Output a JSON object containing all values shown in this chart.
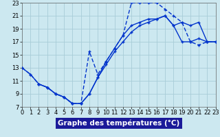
{
  "title": "Graphe des températures (°C)",
  "bg_color": "#cce8f0",
  "grid_color": "#a8ccd8",
  "line_color": "#0033cc",
  "xlabel_bg": "#1a1a99",
  "xlim": [
    0,
    23
  ],
  "ylim": [
    7,
    23
  ],
  "xticks": [
    0,
    1,
    2,
    3,
    4,
    5,
    6,
    7,
    8,
    9,
    10,
    11,
    12,
    13,
    14,
    15,
    16,
    17,
    18,
    19,
    20,
    21,
    22,
    23
  ],
  "yticks": [
    7,
    9,
    11,
    13,
    15,
    17,
    19,
    21,
    23
  ],
  "curve1_x": [
    0,
    1,
    2,
    3,
    4,
    5,
    6,
    7,
    8,
    9,
    10,
    11,
    12,
    13,
    14,
    15,
    16,
    17,
    18,
    19,
    20,
    21,
    22,
    23
  ],
  "curve1_y": [
    13,
    12,
    10.5,
    10,
    9,
    8.5,
    7.5,
    7.5,
    9,
    11.5,
    14,
    16,
    18,
    19.5,
    20,
    20.5,
    20.5,
    21,
    19.5,
    17,
    17,
    17.5,
    17,
    17
  ],
  "curve2_x": [
    0,
    1,
    2,
    3,
    4,
    5,
    6,
    7,
    8,
    9,
    10,
    11,
    12,
    13,
    14,
    15,
    16,
    17,
    18,
    19,
    20,
    21,
    22,
    23
  ],
  "curve2_y": [
    13,
    12,
    10.5,
    10,
    9,
    8.5,
    7.5,
    7.5,
    15.5,
    12,
    14,
    16,
    18,
    23,
    23,
    23,
    23,
    22,
    21,
    20,
    17,
    16.5,
    17,
    17
  ],
  "curve3_x": [
    2,
    3,
    4,
    5,
    6,
    7,
    8,
    9,
    10,
    11,
    12,
    13,
    14,
    15,
    16,
    17,
    18,
    19,
    20,
    21,
    22,
    23
  ],
  "curve3_y": [
    10.5,
    10,
    9,
    8.5,
    7.5,
    7.5,
    9,
    11.5,
    13.5,
    15.5,
    17,
    18.5,
    19.5,
    20,
    20.5,
    21,
    19.5,
    20,
    19.5,
    20,
    17,
    17
  ],
  "tick_fontsize": 6,
  "xlabel_fontsize": 7.5
}
